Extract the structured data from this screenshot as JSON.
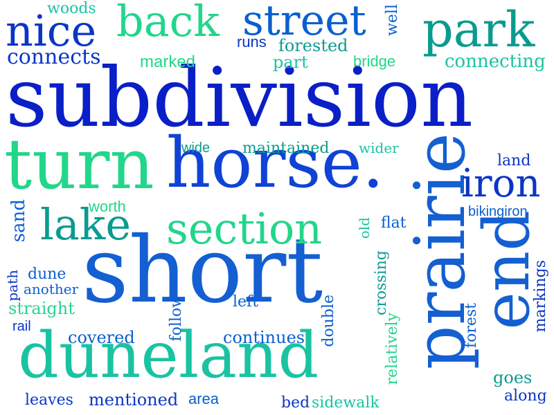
{
  "colors": {
    "blue_dark": "#0a1fc7",
    "blue": "#1042d6",
    "blue_mid": "#145fd1",
    "teal": "#0a9b8f",
    "green": "#22d68a",
    "aqua": "#19c3a2"
  },
  "words": [
    "subdivision",
    "short",
    "horse.",
    "prairie",
    "duneland",
    "turn",
    "end",
    "street",
    "park",
    "nice",
    "back",
    "lake",
    "section",
    "iron",
    "connects",
    "woods",
    "well",
    "runs",
    "forested",
    "marked",
    "part",
    "bridge",
    "connecting",
    "wide",
    "maintained",
    "wider",
    "land",
    "sand",
    "worth",
    "old",
    "flat",
    "bikingiron",
    "dune",
    "path",
    "another",
    "left",
    "straight",
    "crossing",
    "markings",
    "rail",
    "follow",
    "double",
    "forest",
    "covered",
    "continues",
    "relatively",
    "leaves",
    "mentioned",
    "area",
    "bed",
    "sidewalk",
    "goes",
    "along"
  ]
}
